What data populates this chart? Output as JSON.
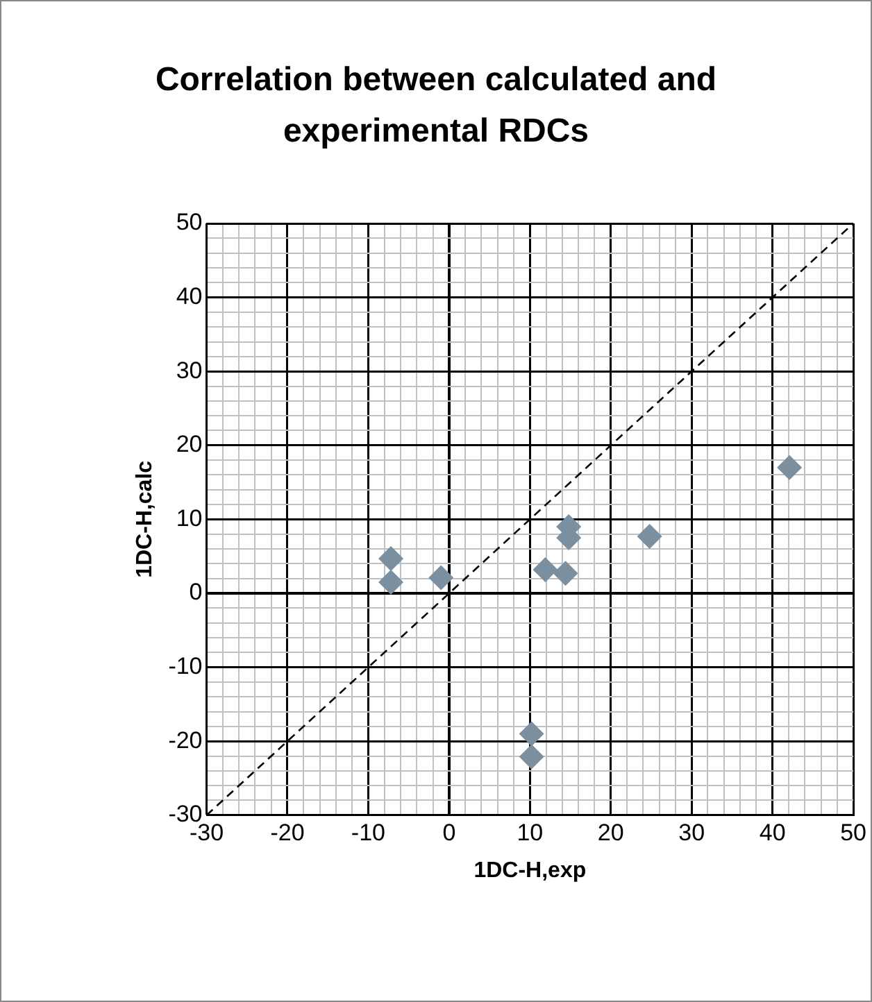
{
  "chart_data": {
    "type": "scatter",
    "title": "Correlation between calculated and experimental RDCs",
    "xlabel": "1DC-H,exp",
    "ylabel": "1DC-H,calc",
    "grid": true,
    "marker": "diamond",
    "xlim": [
      -30,
      50
    ],
    "ylim": [
      -30,
      50
    ],
    "xticks": [
      -30,
      {
        "value": -28,
        "label": null
      },
      {
        "value": -26,
        "label": null
      },
      {
        "value": -24,
        "label": null
      },
      {
        "value": -22,
        "label": null
      },
      -20,
      {
        "value": -18,
        "label": null
      },
      {
        "value": -16,
        "label": null
      },
      {
        "value": -14,
        "label": null
      },
      {
        "value": -12,
        "label": null
      },
      -10,
      {
        "value": -8,
        "label": null
      },
      {
        "value": -6,
        "label": null
      },
      {
        "value": -4,
        "label": null
      },
      {
        "value": -2,
        "label": null
      },
      0,
      {
        "value": 2,
        "label": null
      },
      {
        "value": 4,
        "label": null
      },
      {
        "value": 6,
        "label": null
      },
      {
        "value": 8,
        "label": null
      },
      10,
      {
        "value": 12,
        "label": null
      },
      {
        "value": 14,
        "label": null
      },
      {
        "value": 16,
        "label": null
      },
      {
        "value": 18,
        "label": null
      },
      20,
      {
        "value": 22,
        "label": null
      },
      {
        "value": 24,
        "label": null
      },
      {
        "value": 26,
        "label": null
      },
      {
        "value": 28,
        "label": null
      },
      30,
      {
        "value": 32,
        "label": null
      },
      {
        "value": 34,
        "label": null
      },
      {
        "value": 36,
        "label": null
      },
      {
        "value": 38,
        "label": null
      },
      40,
      {
        "value": 42,
        "label": null
      },
      {
        "value": 44,
        "label": null
      },
      {
        "value": 46,
        "label": null
      },
      {
        "value": 48,
        "label": null
      },
      50
    ],
    "yticks": [
      -30,
      {
        "value": -28,
        "label": null
      },
      {
        "value": -26,
        "label": null
      },
      {
        "value": -24,
        "label": null
      },
      {
        "value": -22,
        "label": null
      },
      -20,
      {
        "value": -18,
        "label": null
      },
      {
        "value": -16,
        "label": null
      },
      {
        "value": -14,
        "label": null
      },
      {
        "value": -12,
        "label": null
      },
      -10,
      {
        "value": -8,
        "label": null
      },
      {
        "value": -6,
        "label": null
      },
      {
        "value": -4,
        "label": null
      },
      {
        "value": -2,
        "label": null
      },
      0,
      {
        "value": 2,
        "label": null
      },
      {
        "value": 4,
        "label": null
      },
      {
        "value": 6,
        "label": null
      },
      {
        "value": 8,
        "label": null
      },
      10,
      {
        "value": 12,
        "label": null
      },
      {
        "value": 14,
        "label": null
      },
      {
        "value": 16,
        "label": null
      },
      {
        "value": 18,
        "label": null
      },
      20,
      {
        "value": 22,
        "label": null
      },
      {
        "value": 24,
        "label": null
      },
      {
        "value": 26,
        "label": null
      },
      {
        "value": 28,
        "label": null
      },
      30,
      {
        "value": 32,
        "label": null
      },
      {
        "value": 34,
        "label": null
      },
      {
        "value": 36,
        "label": null
      },
      {
        "value": 38,
        "label": null
      },
      40,
      {
        "value": 42,
        "label": null
      },
      {
        "value": 44,
        "label": null
      },
      {
        "value": 46,
        "label": null
      },
      {
        "value": 48,
        "label": null
      },
      50
    ],
    "series": [
      {
        "type": "scatter",
        "color": "#7a8fa0",
        "x": [
          42.1,
          -7.2,
          -7.2,
          -1.0,
          14.8,
          14.8,
          11.9,
          14.4,
          24.8,
          10.2,
          10.2
        ],
        "values": [
          17.0,
          4.7,
          1.5,
          2.1,
          9.0,
          7.5,
          3.2,
          2.7,
          7.7,
          -19.0,
          -22.1
        ]
      },
      {
        "type": "line",
        "color": "#000000",
        "line_style": "dashed",
        "marker": "none",
        "x": [
          -30,
          50
        ],
        "values": [
          -30,
          50
        ]
      }
    ]
  }
}
